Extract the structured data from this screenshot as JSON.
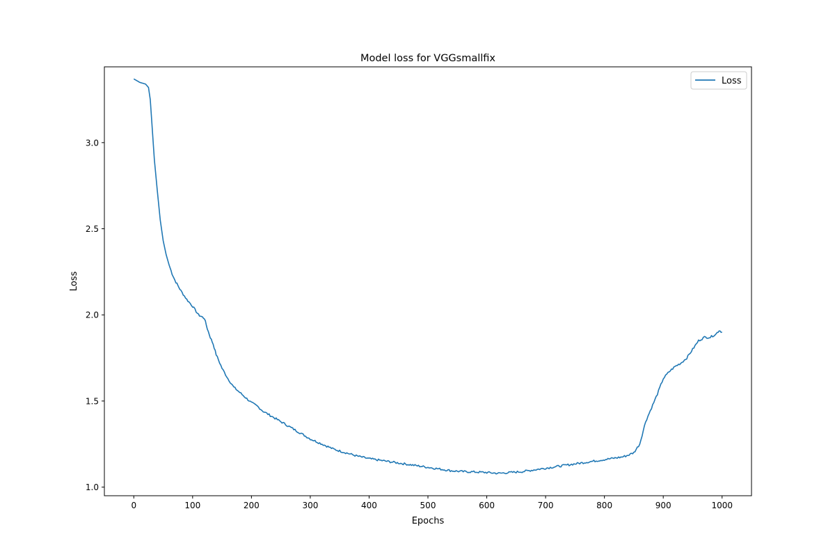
{
  "chart_data": {
    "type": "line",
    "title": "Model loss for VGGsmallfix",
    "xlabel": "Epochs",
    "ylabel": "Loss",
    "xlim": [
      -50,
      1050
    ],
    "ylim": [
      0.95,
      3.44
    ],
    "xticks": [
      0,
      100,
      200,
      300,
      400,
      500,
      600,
      700,
      800,
      900,
      1000
    ],
    "yticks": [
      1.0,
      1.5,
      2.0,
      2.5,
      3.0
    ],
    "ytick_labels": [
      "1.0",
      "1.5",
      "2.0",
      "2.5",
      "3.0"
    ],
    "grid": false,
    "legend_position": "upper right",
    "series": [
      {
        "name": "Loss",
        "color": "#1f77b4",
        "x": [
          0,
          5,
          10,
          15,
          20,
          25,
          28,
          30,
          35,
          40,
          45,
          50,
          55,
          60,
          65,
          70,
          75,
          80,
          90,
          100,
          110,
          115,
          120,
          125,
          130,
          135,
          140,
          150,
          160,
          170,
          180,
          190,
          200,
          210,
          220,
          230,
          240,
          250,
          260,
          270,
          280,
          290,
          300,
          320,
          340,
          360,
          380,
          400,
          420,
          440,
          460,
          480,
          500,
          520,
          540,
          560,
          580,
          600,
          620,
          640,
          660,
          680,
          700,
          720,
          740,
          760,
          780,
          800,
          820,
          830,
          840,
          850,
          860,
          870,
          880,
          890,
          900,
          910,
          920,
          930,
          940,
          950,
          960,
          970,
          980,
          990,
          995,
          1000
        ],
        "y": [
          3.37,
          3.36,
          3.35,
          3.345,
          3.34,
          3.32,
          3.25,
          3.15,
          2.9,
          2.72,
          2.55,
          2.43,
          2.35,
          2.29,
          2.24,
          2.2,
          2.17,
          2.14,
          2.09,
          2.05,
          2.0,
          1.99,
          1.98,
          1.92,
          1.87,
          1.83,
          1.77,
          1.69,
          1.63,
          1.58,
          1.55,
          1.52,
          1.49,
          1.47,
          1.44,
          1.42,
          1.4,
          1.38,
          1.36,
          1.34,
          1.32,
          1.3,
          1.28,
          1.25,
          1.22,
          1.2,
          1.18,
          1.165,
          1.155,
          1.145,
          1.135,
          1.125,
          1.115,
          1.105,
          1.095,
          1.09,
          1.088,
          1.085,
          1.08,
          1.085,
          1.09,
          1.1,
          1.11,
          1.12,
          1.13,
          1.14,
          1.15,
          1.16,
          1.17,
          1.175,
          1.185,
          1.2,
          1.25,
          1.38,
          1.46,
          1.54,
          1.63,
          1.67,
          1.7,
          1.72,
          1.75,
          1.8,
          1.85,
          1.87,
          1.87,
          1.89,
          1.91,
          1.9
        ]
      }
    ]
  }
}
